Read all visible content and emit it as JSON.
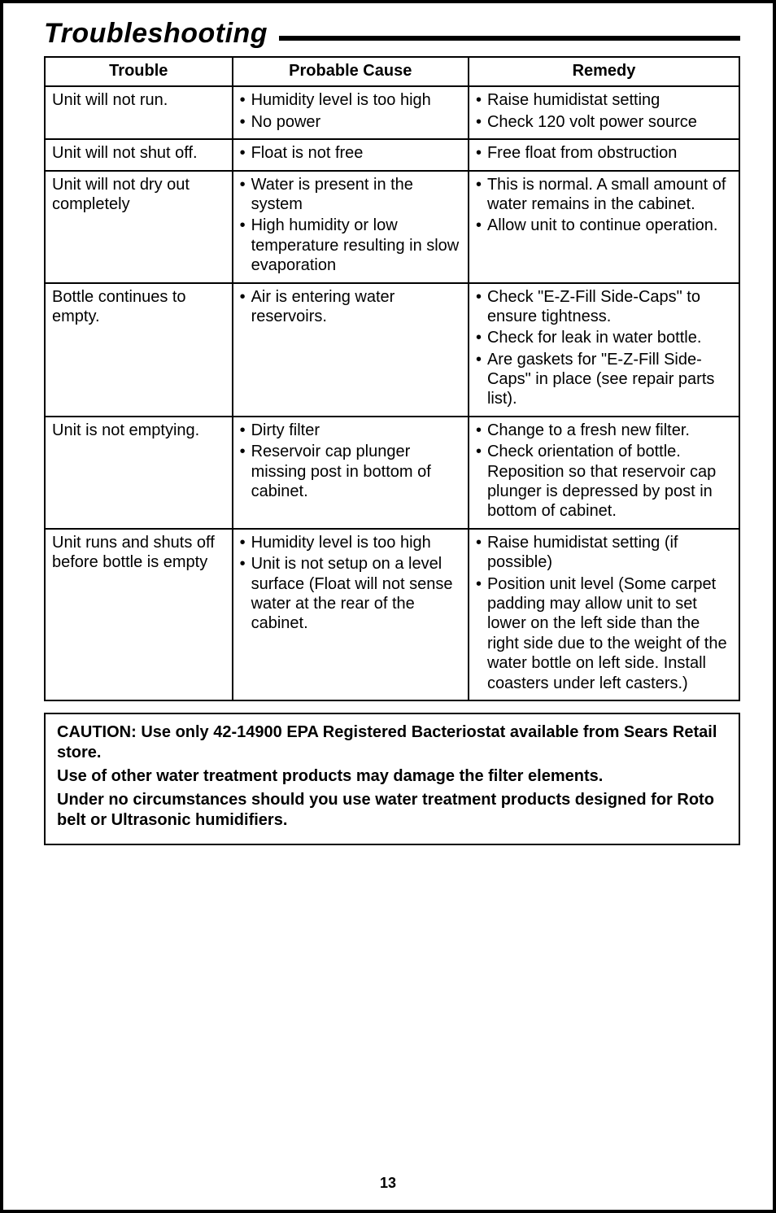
{
  "title": "Troubleshooting",
  "columns": [
    "Trouble",
    "Probable Cause",
    "Remedy"
  ],
  "rows": [
    {
      "trouble": "Unit will not run.",
      "cause": [
        "Humidity level is too high",
        "No power"
      ],
      "remedy": [
        "Raise humidistat setting",
        "Check 120 volt power source"
      ]
    },
    {
      "trouble": "Unit will not shut off.",
      "cause": [
        "Float is not free"
      ],
      "remedy": [
        "Free float from obstruction"
      ]
    },
    {
      "trouble": "Unit will not dry out completely",
      "cause": [
        "Water is present in the system",
        "High humidity or low temperature resulting in slow evaporation"
      ],
      "remedy": [
        "This is normal. A small amount of water remains in the cabinet.",
        "Allow unit to continue operation."
      ]
    },
    {
      "trouble": "Bottle continues to empty.",
      "cause": [
        "Air is entering water reservoirs."
      ],
      "remedy": [
        "Check \"E-Z-Fill Side-Caps\" to ensure tightness.",
        "Check for leak in water bottle.",
        "Are gaskets for \"E-Z-Fill Side-Caps\" in place (see repair parts list)."
      ]
    },
    {
      "trouble": "Unit is not emptying.",
      "cause": [
        "Dirty filter",
        "Reservoir cap plunger missing post in bottom of cabinet."
      ],
      "remedy": [
        "Change to a fresh new filter.",
        "Check orientation of bottle. Reposition so that reservoir cap plunger is depressed by post in bottom of cabinet."
      ]
    },
    {
      "trouble": "Unit runs and shuts off before bottle is empty",
      "cause": [
        "Humidity level is too high",
        "Unit is not setup on a level surface (Float will not sense water at the rear of the cabinet."
      ],
      "remedy": [
        "Raise humidistat setting (if possible)",
        "Position unit level (Some carpet padding may allow unit to set lower on the left side than the right side due to the weight of the water bottle on left side. Install coasters under left casters.)"
      ]
    }
  ],
  "caution": {
    "p1": "CAUTION: Use only 42-14900 EPA Registered Bacteriostat available from Sears Retail store.",
    "p2": "Use of other water treatment products may damage the filter elements.",
    "p3": "Under no circumstances should you use water treatment products designed for Roto belt or Ultrasonic humidifiers."
  },
  "page_number": "13",
  "colors": {
    "text": "#000000",
    "background": "#ffffff",
    "border": "#000000"
  },
  "typography": {
    "title_fontsize_pt": 26,
    "body_fontsize_pt": 15,
    "font_family": "Arial"
  }
}
